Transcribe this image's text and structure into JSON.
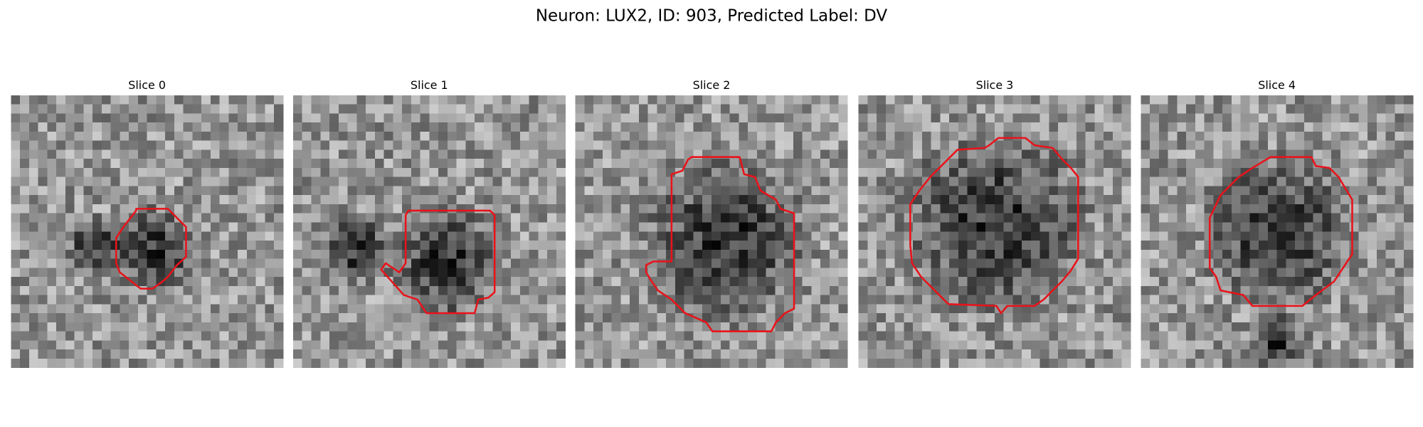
{
  "title": "Neuron: LUX2, ID: 903, Predicted Label: DV",
  "panels": [
    {
      "title": "Slice 0"
    },
    {
      "title": "Slice 1"
    },
    {
      "title": "Slice 2"
    },
    {
      "title": "Slice 3"
    },
    {
      "title": "Slice 4"
    }
  ]
}
